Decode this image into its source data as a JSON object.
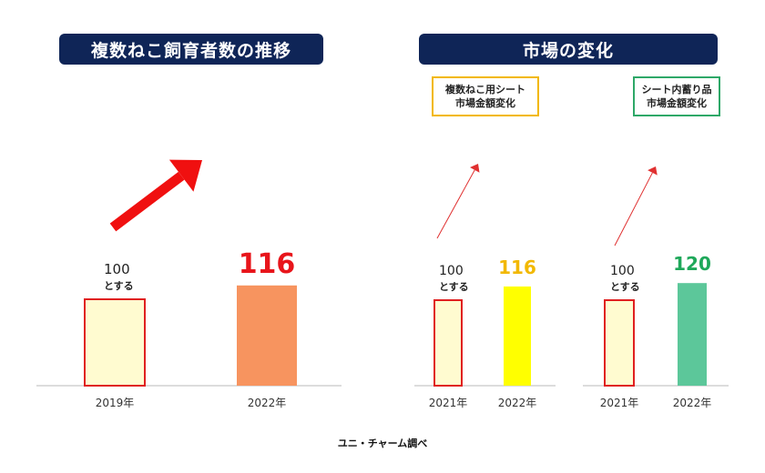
{
  "headers": {
    "left": "複数ねこ飼育者数の推移",
    "right": "市場の変化"
  },
  "subtitles": {
    "sheet": [
      "複数ねこ用シート",
      "市場金額変化"
    ],
    "litter": [
      "シート内蓄り品",
      "市場金額変化"
    ]
  },
  "source": "ユニ・チャーム調べ",
  "colors": {
    "header_bg": "#0f2557",
    "base_bar_fill": "#fffbd0",
    "base_bar_stroke": "#e02020",
    "panel1_bar": "#f7945f",
    "panel2_bar": "#ffff00",
    "panel3_bar": "#5cc79a",
    "panel1_label": "#e8151b",
    "panel2_label": "#f2b800",
    "panel3_label": "#1fa85a",
    "arrow_main": "#f01010",
    "arrow_thin": "#e03030",
    "baseline": "#b8b8b8"
  },
  "chart_data": [
    {
      "type": "bar",
      "title": "複数ねこ飼育者数の推移",
      "categories": [
        "2019年",
        "2022年"
      ],
      "values": [
        100,
        116
      ],
      "base_note": "とする",
      "ylim": [
        0,
        125
      ]
    },
    {
      "type": "bar",
      "title": "複数ねこ用シート 市場金額変化",
      "categories": [
        "2021年",
        "2022年"
      ],
      "values": [
        100,
        116
      ],
      "base_note": "とする",
      "ylim": [
        0,
        125
      ]
    },
    {
      "type": "bar",
      "title": "シート内蓄り品 市場金額変化",
      "categories": [
        "2021年",
        "2022年"
      ],
      "values": [
        100,
        120
      ],
      "base_note": "とする",
      "ylim": [
        0,
        125
      ]
    }
  ]
}
